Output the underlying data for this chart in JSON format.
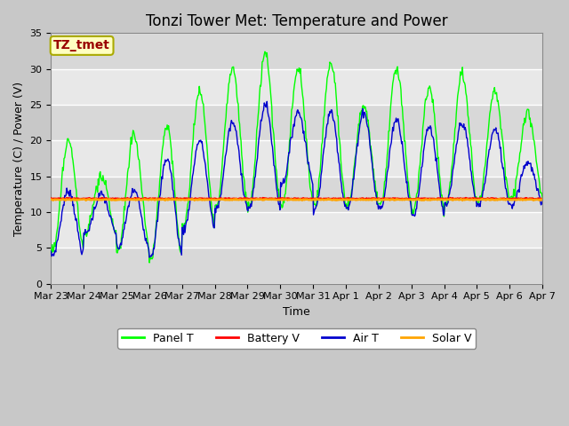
{
  "title": "Tonzi Tower Met: Temperature and Power",
  "xlabel": "Time",
  "ylabel": "Temperature (C) / Power (V)",
  "annotation": "TZ_tmet",
  "ylim": [
    0,
    35
  ],
  "yticks": [
    0,
    5,
    10,
    15,
    20,
    25,
    30,
    35
  ],
  "x_labels": [
    "Mar 23",
    "Mar 24",
    "Mar 25",
    "Mar 26",
    "Mar 27",
    "Mar 28",
    "Mar 29",
    "Mar 30",
    "Mar 31",
    "Apr 1",
    "Apr 2",
    "Apr 3",
    "Apr 4",
    "Apr 5",
    "Apr 6",
    "Apr 7"
  ],
  "panel_t_color": "#00ff00",
  "battery_v_color": "#ff0000",
  "air_t_color": "#0000cd",
  "solar_v_color": "#ffa500",
  "fig_bg_color": "#c8c8c8",
  "plot_bg_color": "#e8e8e8",
  "grid_color": "#ffffff",
  "title_fontsize": 12,
  "label_fontsize": 9,
  "tick_fontsize": 8,
  "legend_fontsize": 9,
  "annotation_fontsize": 10,
  "annotation_bg": "#ffffc0",
  "annotation_fg": "#990000",
  "annotation_border": "#aaaa00",
  "n_days": 15,
  "pts_per_day": 48,
  "battery_level": 11.9,
  "solar_level": 11.75
}
